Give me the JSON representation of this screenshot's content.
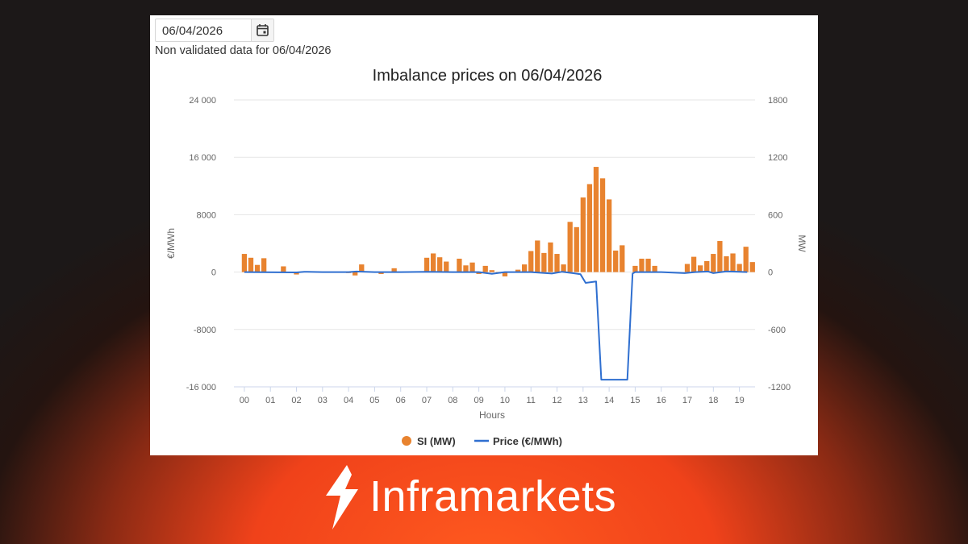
{
  "date_picker": {
    "value": "06/04/2026",
    "icon": "calendar-icon"
  },
  "note": "Non validated data for 06/04/2026",
  "brand": {
    "name": "Inframarkets",
    "icon": "bolt-logo-icon"
  },
  "colors": {
    "bar": "#e8832f",
    "line": "#2f6fd0",
    "grid": "#e6e6e6",
    "axis_text": "#666666"
  },
  "chart_data": {
    "type": "bar+line",
    "title": "Imbalance prices on 06/04/2026",
    "xlabel": "Hours",
    "y_left_label": "€/MWh",
    "y_right_label": "MW",
    "y_left_ticks": [
      "24 000",
      "16 000",
      "8000",
      "0",
      "-8000",
      "-16 000"
    ],
    "y_right_ticks": [
      "1800",
      "1200",
      "600",
      "0",
      "-600",
      "-1200"
    ],
    "y_left_range": [
      -16000,
      24000
    ],
    "y_right_range": [
      -1200,
      1800
    ],
    "x_ticks": [
      "00",
      "01",
      "02",
      "03",
      "04",
      "05",
      "06",
      "07",
      "08",
      "09",
      "10",
      "11",
      "12",
      "13",
      "14",
      "15",
      "16",
      "17",
      "18",
      "19"
    ],
    "grid": true,
    "legend_position": "bottom",
    "series": [
      {
        "name": "SI (MW)",
        "kind": "bar",
        "axis": "right",
        "values": [
          190,
          150,
          75,
          145,
          0,
          0,
          60,
          0,
          -25,
          0,
          0,
          0,
          0,
          0,
          0,
          0,
          -10,
          -35,
          80,
          0,
          0,
          -20,
          0,
          40,
          0,
          0,
          0,
          0,
          150,
          195,
          155,
          110,
          0,
          140,
          70,
          100,
          -20,
          65,
          20,
          -15,
          -45,
          0,
          25,
          80,
          220,
          330,
          200,
          310,
          190,
          80,
          525,
          470,
          780,
          920,
          1100,
          980,
          760,
          225,
          280,
          0,
          65,
          140,
          140,
          65,
          0,
          0,
          0,
          0,
          85,
          160,
          70,
          115,
          190,
          325,
          165,
          195,
          85,
          265,
          105,
          0
        ]
      },
      {
        "name": "Price (€/MWh)",
        "kind": "line",
        "axis": "left",
        "points": [
          [
            0,
            0
          ],
          [
            2,
            -50
          ],
          [
            2.3,
            50
          ],
          [
            3,
            0
          ],
          [
            4,
            0
          ],
          [
            4.3,
            80
          ],
          [
            5,
            0
          ],
          [
            6,
            0
          ],
          [
            7,
            50
          ],
          [
            8,
            0
          ],
          [
            9,
            0
          ],
          [
            9.5,
            -250
          ],
          [
            10,
            0
          ],
          [
            11,
            0
          ],
          [
            11.8,
            -200
          ],
          [
            12.2,
            50
          ],
          [
            12.6,
            -150
          ],
          [
            12.9,
            -300
          ],
          [
            13.1,
            -1500
          ],
          [
            13.5,
            -1300
          ],
          [
            13.7,
            -15000
          ],
          [
            14.7,
            -15000
          ],
          [
            14.9,
            -200
          ],
          [
            15,
            0
          ],
          [
            16,
            0
          ],
          [
            16.9,
            -150
          ],
          [
            17.3,
            0
          ],
          [
            17.8,
            80
          ],
          [
            18,
            -150
          ],
          [
            18.5,
            100
          ],
          [
            19,
            50
          ],
          [
            19.3,
            0
          ]
        ]
      }
    ]
  }
}
